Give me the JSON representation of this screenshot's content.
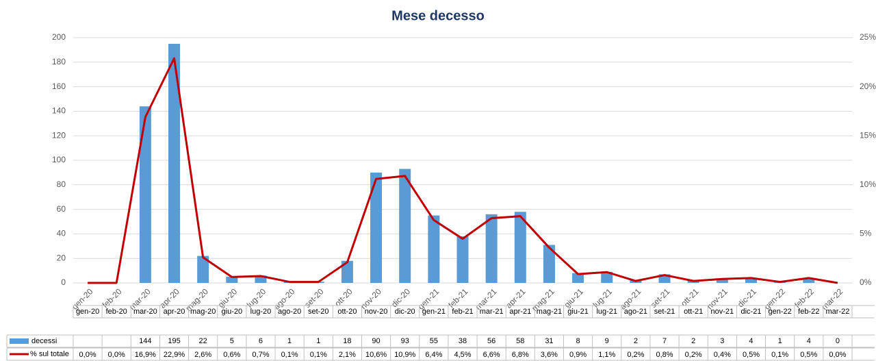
{
  "chart_data": {
    "type": "bar_line",
    "title": "Mese decesso",
    "categories": [
      "gen-20",
      "feb-20",
      "mar-20",
      "apr-20",
      "mag-20",
      "giu-20",
      "lug-20",
      "ago-20",
      "set-20",
      "ott-20",
      "nov-20",
      "dic-20",
      "gen-21",
      "feb-21",
      "mar-21",
      "apr-21",
      "mag-21",
      "giu-21",
      "lug-21",
      "ago-21",
      "set-21",
      "ott-21",
      "nov-21",
      "dic-21",
      "gen-22",
      "feb-22",
      "mar-22"
    ],
    "series": [
      {
        "name": "decessi",
        "type": "bar",
        "color": "#5b9bd5",
        "values": [
          null,
          null,
          144,
          195,
          22,
          5,
          6,
          1,
          1,
          18,
          90,
          93,
          55,
          38,
          56,
          58,
          31,
          8,
          9,
          2,
          7,
          2,
          3,
          4,
          1,
          4,
          0
        ]
      },
      {
        "name": "% sul totale",
        "type": "line",
        "axis": "y2",
        "color": "#c00000",
        "values": [
          0.0,
          0.0,
          16.9,
          22.9,
          2.6,
          0.6,
          0.7,
          0.1,
          0.1,
          2.1,
          10.6,
          10.9,
          6.4,
          4.5,
          6.6,
          6.8,
          3.6,
          0.9,
          1.1,
          0.2,
          0.8,
          0.2,
          0.4,
          0.5,
          0.1,
          0.5,
          0.0
        ],
        "value_labels": [
          "0,0%",
          "0,0%",
          "16,9%",
          "22,9%",
          "2,6%",
          "0,6%",
          "0,7%",
          "0,1%",
          "0,1%",
          "2,1%",
          "10,6%",
          "10,9%",
          "6,4%",
          "4,5%",
          "6,6%",
          "6,8%",
          "3,6%",
          "0,9%",
          "1,1%",
          "0,2%",
          "0,8%",
          "0,2%",
          "0,4%",
          "0,5%",
          "0,1%",
          "0,5%",
          "0,0%"
        ]
      }
    ],
    "ylim": [
      0,
      200
    ],
    "yticks": [
      0,
      20,
      40,
      60,
      80,
      100,
      120,
      140,
      160,
      180,
      200
    ],
    "y2lim": [
      0,
      25
    ],
    "y2ticks": [
      {
        "value": 0,
        "label": "0%"
      },
      {
        "value": 5,
        "label": "5%"
      },
      {
        "value": 10,
        "label": "10%"
      },
      {
        "value": 15,
        "label": "15%"
      },
      {
        "value": 20,
        "label": "20%"
      },
      {
        "value": 25,
        "label": "25%"
      }
    ],
    "grid": true
  }
}
